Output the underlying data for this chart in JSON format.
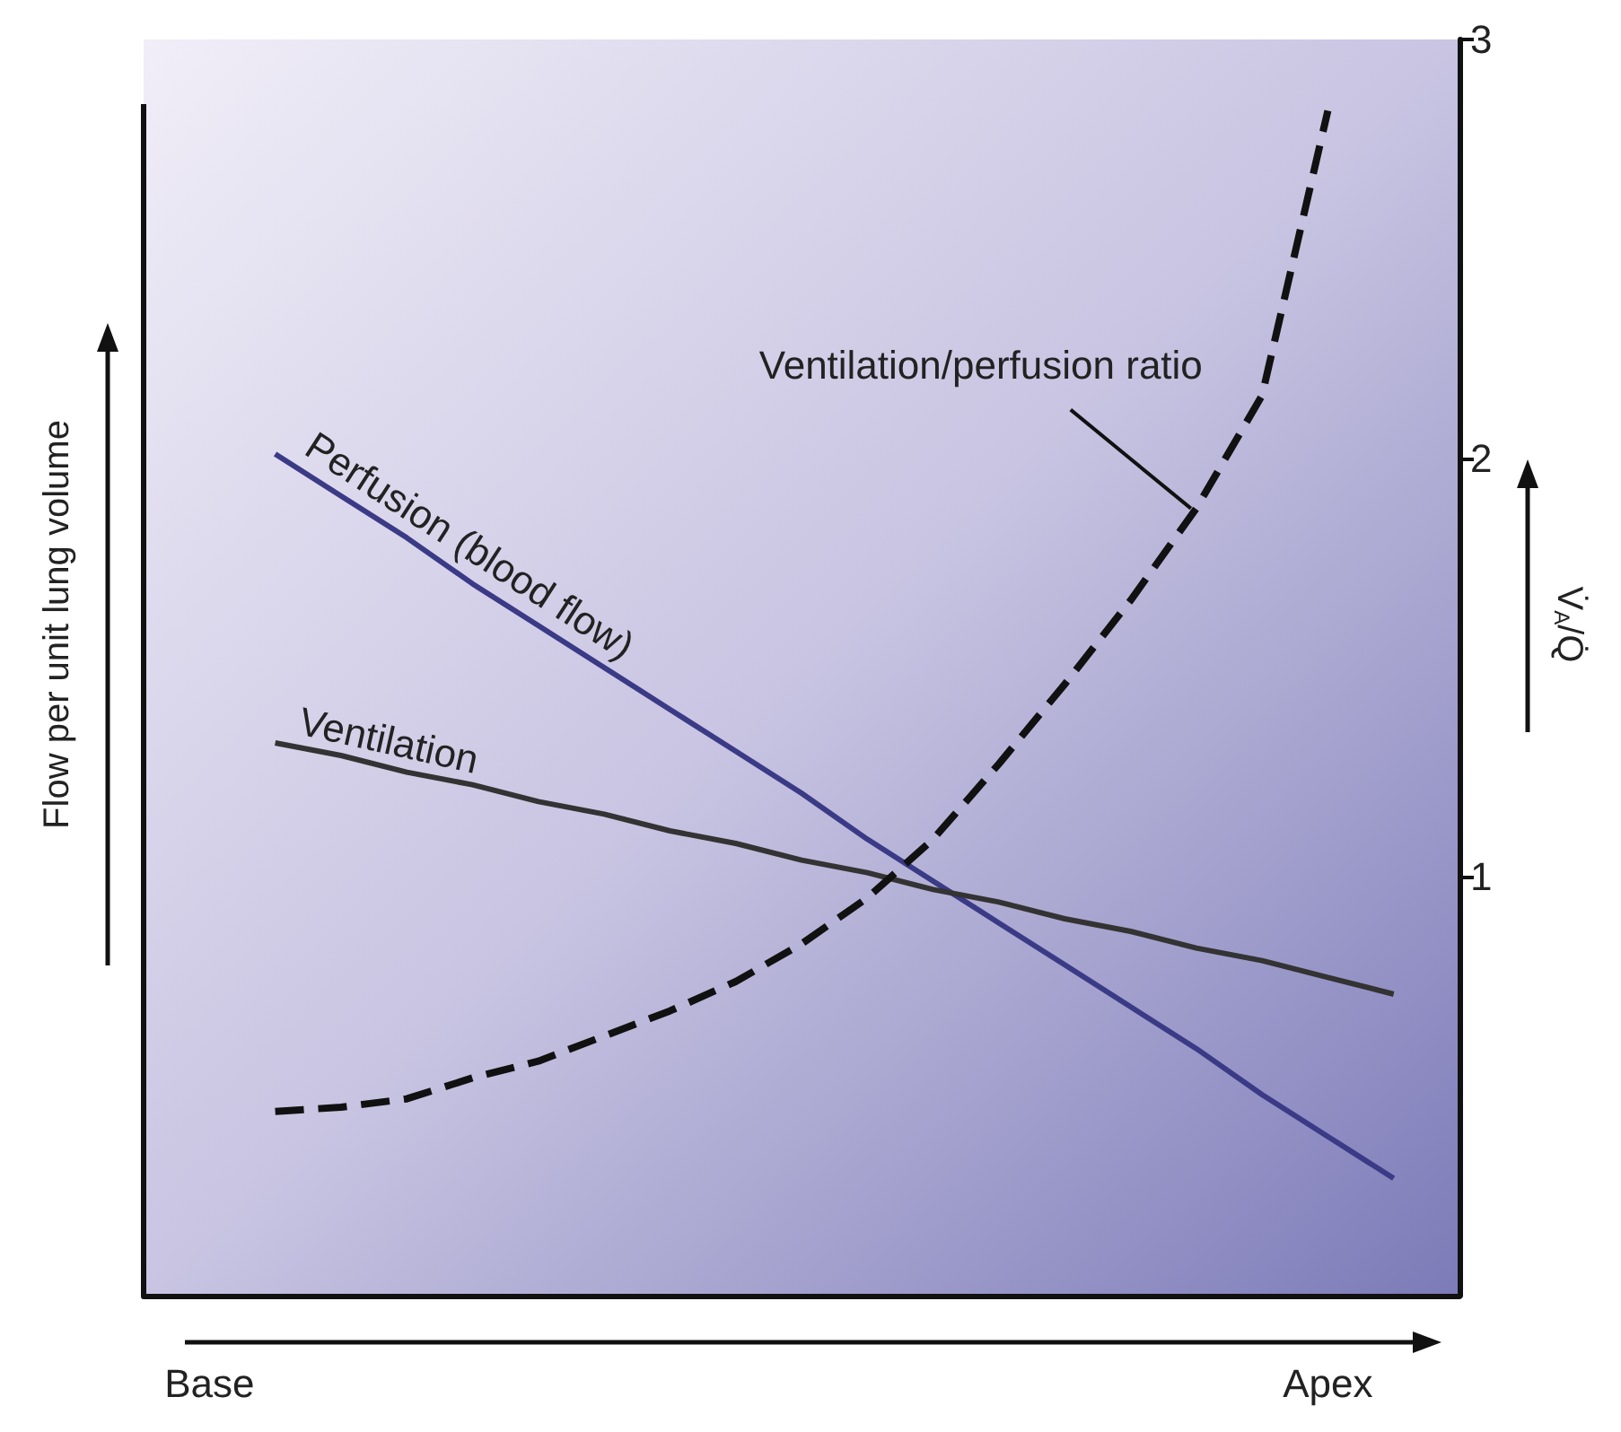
{
  "chart_data": {
    "type": "line",
    "ylabel": "Flow per unit lung volume",
    "y2label": "V̇$_{A}$/Q̇",
    "categories": [
      null,
      "Base",
      null,
      null,
      null,
      null,
      null,
      null,
      null,
      null,
      null,
      null,
      null,
      null,
      null,
      null,
      null,
      null,
      "Apex",
      null,
      null
    ],
    "ylim": [
      0,
      3
    ],
    "yticks": [
      1,
      2,
      3
    ],
    "grid": false,
    "legend": false,
    "marker": "none",
    "series": [
      {
        "name": "Perfusion (blood flow)",
        "color": "#3b3a86",
        "line_style": "solid",
        "values": [
          null,
          null,
          2.01,
          1.91,
          1.81,
          1.7,
          1.6,
          1.5,
          1.4,
          1.3,
          1.2,
          1.09,
          0.99,
          0.89,
          0.79,
          0.69,
          0.59,
          0.48,
          0.38,
          0.28,
          null
        ]
      },
      {
        "name": "Ventilation",
        "color": "#333333",
        "line_style": "solid",
        "values": [
          null,
          null,
          1.32,
          1.29,
          1.25,
          1.22,
          1.18,
          1.15,
          1.11,
          1.08,
          1.04,
          1.01,
          0.97,
          0.94,
          0.9,
          0.87,
          0.83,
          0.8,
          0.76,
          0.72,
          null
        ]
      },
      {
        "name": "Ventilation/perfusion ratio",
        "color": "#111111",
        "line_style": "dashed",
        "values": [
          null,
          null,
          0.44,
          0.45,
          0.47,
          0.52,
          0.56,
          0.62,
          0.68,
          0.75,
          0.84,
          0.95,
          1.09,
          1.27,
          1.46,
          1.66,
          1.88,
          2.15,
          2.83,
          null,
          null
        ]
      }
    ]
  }
}
